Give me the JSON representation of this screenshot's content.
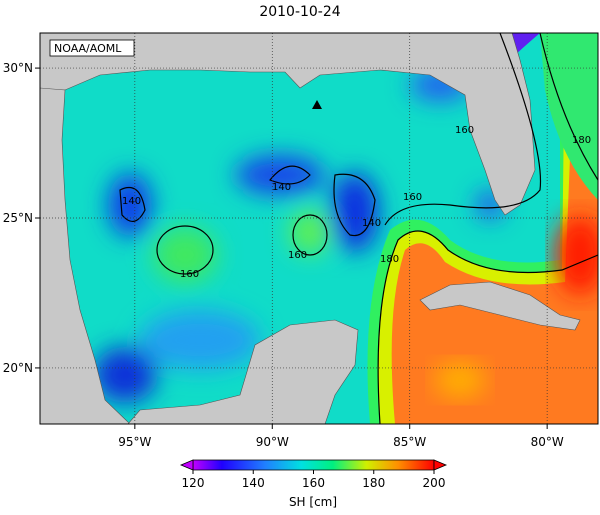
{
  "title": "2010-10-24",
  "source": "NOAA/AOML",
  "lon_range": [
    -98.45,
    -78.15
  ],
  "lat_range": [
    18.13,
    31.17
  ],
  "lon_ticks": [
    {
      "value": -95,
      "label": "95°W"
    },
    {
      "value": -90,
      "label": "90°W"
    },
    {
      "value": -85,
      "label": "85°W"
    },
    {
      "value": -80,
      "label": "80°W"
    }
  ],
  "lat_ticks": [
    {
      "value": 30,
      "label": "30°N"
    },
    {
      "value": 25,
      "label": "25°N"
    },
    {
      "value": 20,
      "label": "20°N"
    }
  ],
  "contour_labels": [
    "160",
    "180",
    "140",
    "140",
    "160",
    "140",
    "160",
    "180",
    "160"
  ],
  "colorbar": {
    "label": "SH [cm]",
    "range": [
      120,
      200
    ],
    "ticks": [
      120,
      140,
      160,
      180,
      200
    ]
  }
}
